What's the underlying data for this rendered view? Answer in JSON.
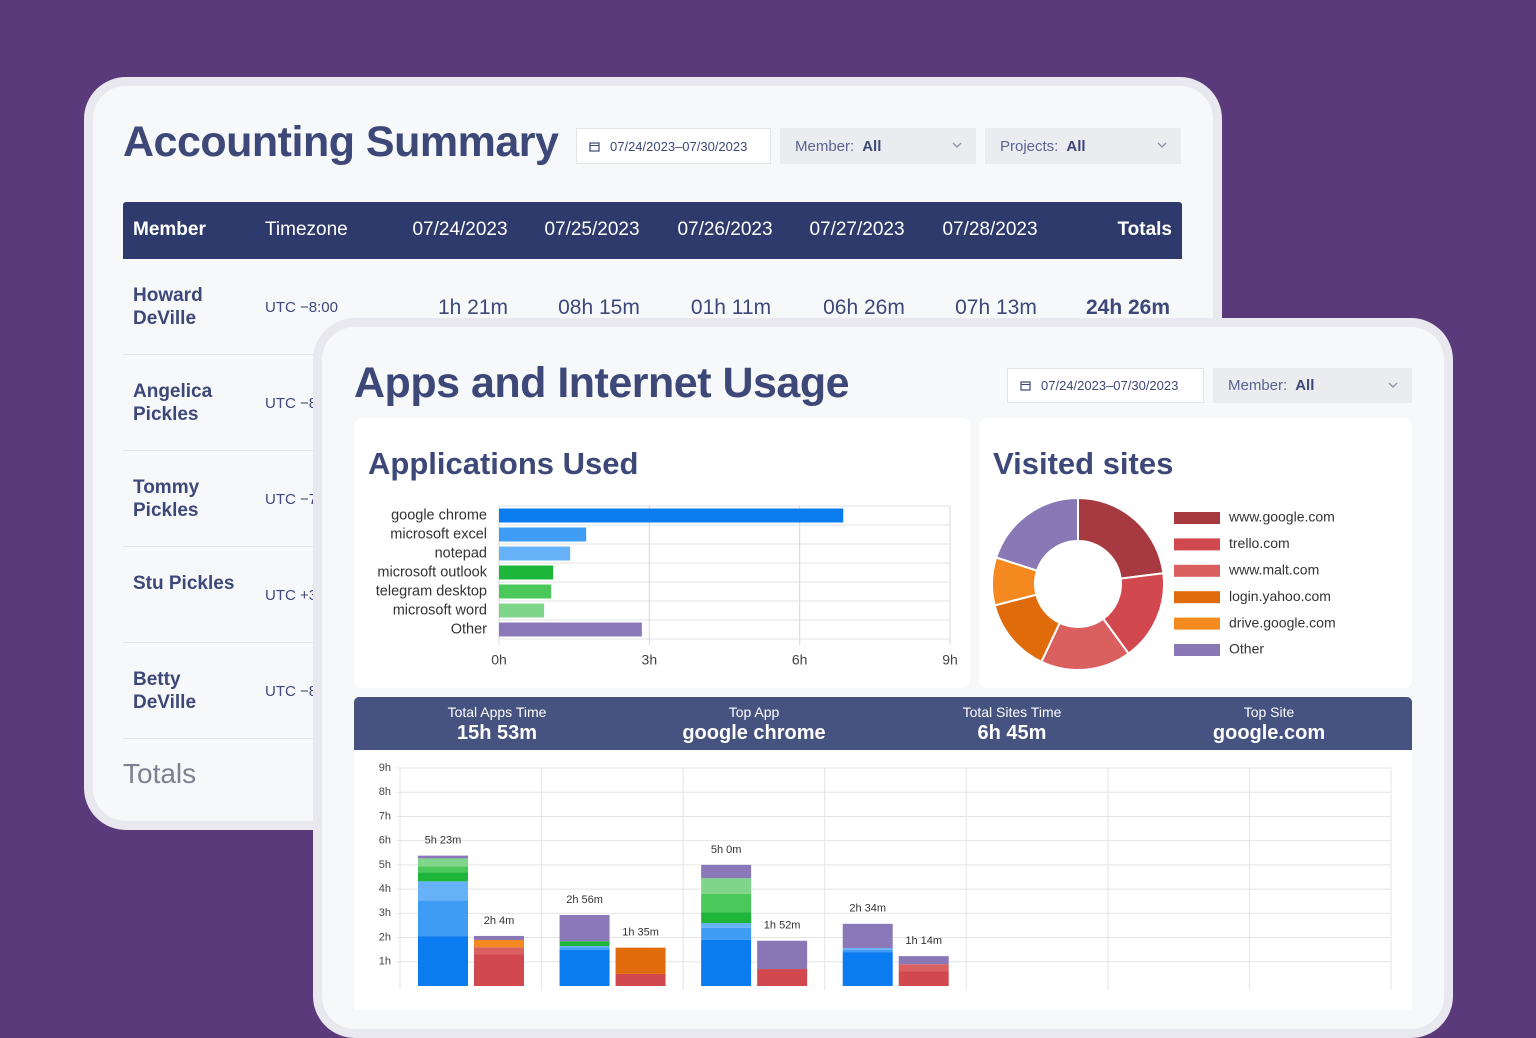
{
  "accounting": {
    "title": "Accounting Summary",
    "date_range": "07/24/2023–07/30/2023",
    "filters": [
      {
        "label": "Member:",
        "value": "All"
      },
      {
        "label": "Projects:",
        "value": "All"
      }
    ],
    "table": {
      "header": [
        "Member",
        "Timezone",
        "07/24/2023",
        "07/25/2023",
        "07/26/2023",
        "07/27/2023",
        "07/28/2023",
        "Totals"
      ],
      "rows": [
        [
          "Howard DeVille",
          "UTC −8:00",
          "1h 21m",
          "08h 15m",
          "01h 11m",
          "06h 26m",
          "07h 13m",
          "24h 26m"
        ],
        [
          "Angelica Pickles",
          "UTC −8"
        ],
        [
          "Tommy Pickles",
          "UTC −7"
        ],
        [
          "Stu Pickles",
          "UTC +3"
        ],
        [
          "Betty DeVille",
          "UTC −8"
        ]
      ]
    },
    "totals_label": "Totals"
  },
  "usage": {
    "title": "Apps and Internet Usage",
    "date_range": "07/24/2023–07/30/2023",
    "filters": [
      {
        "label": "Member:",
        "value": "All"
      }
    ],
    "stats": [
      {
        "label": "Total Apps Time",
        "value": "15h 53m"
      },
      {
        "label": "Top App",
        "value": "google chrome"
      },
      {
        "label": "Total Sites Time",
        "value": "6h 45m"
      },
      {
        "label": "Top Site",
        "value": "google.com"
      }
    ]
  },
  "chart_data": [
    {
      "type": "hbar",
      "title": "Applications Used",
      "categories": [
        "google chrome",
        "microsoft excel",
        "notepad",
        "microsoft outlook",
        "telegram desktop",
        "microsoft word",
        "Other"
      ],
      "values": [
        6.87,
        1.74,
        1.42,
        1.08,
        1.04,
        0.9,
        2.85
      ],
      "colors": [
        "#0b7bf0",
        "#3e9cf4",
        "#66b1f7",
        "#1db53a",
        "#4bc85a",
        "#7fd58a",
        "#8b78b8"
      ],
      "xlim": [
        0,
        9
      ],
      "xticks": [
        {
          "value": 0,
          "label": "0h"
        },
        {
          "value": 3,
          "label": "3h"
        },
        {
          "value": 6,
          "label": "6h"
        },
        {
          "value": 9,
          "label": "9h"
        }
      ],
      "grid": true
    },
    {
      "type": "donut",
      "title": "Visited sites",
      "categories": [
        "www.google.com",
        "trello.com",
        "www.malt.com",
        "login.yahoo.com",
        "drive.google.com",
        "Other"
      ],
      "values": [
        23,
        17,
        17,
        14,
        9,
        20
      ],
      "colors": [
        "#a63a40",
        "#d1484e",
        "#da5f5f",
        "#e06b0b",
        "#f48a1f",
        "#8978b5"
      ],
      "legend": "right"
    },
    {
      "type": "stacked_bar",
      "categories": [
        null,
        null,
        null,
        null,
        null,
        null,
        null
      ],
      "ylim": [
        0,
        9
      ],
      "yticks": [
        {
          "value": 1,
          "label": "1h"
        },
        {
          "value": 2,
          "label": "2h"
        },
        {
          "value": 3,
          "label": "3h"
        },
        {
          "value": 4,
          "label": "4h"
        },
        {
          "value": 5,
          "label": "5h"
        },
        {
          "value": 6,
          "label": "6h"
        },
        {
          "value": 7,
          "label": "7h"
        },
        {
          "value": 8,
          "label": "8h"
        },
        {
          "value": 9,
          "label": "9h"
        }
      ],
      "grid": true,
      "series": [
        {
          "stack": "apps",
          "color": "#0b7bf0",
          "values": [
            2.06,
            1.5,
            1.9,
            1.4,
            null,
            null,
            null
          ]
        },
        {
          "stack": "apps",
          "color": "#3e9cf4",
          "values": [
            1.48,
            0.1,
            0.5,
            0.1,
            null,
            null,
            null
          ]
        },
        {
          "stack": "apps",
          "color": "#66b1f7",
          "values": [
            0.78,
            0.05,
            0.2,
            0.067,
            null,
            null,
            null
          ]
        },
        {
          "stack": "apps",
          "color": "#1db53a",
          "values": [
            0.37,
            0.2,
            0.45,
            0,
            null,
            null,
            null
          ]
        },
        {
          "stack": "apps",
          "color": "#4bc85a",
          "values": [
            0.25,
            0,
            0.75,
            0,
            null,
            null,
            null
          ]
        },
        {
          "stack": "apps",
          "color": "#7fd58a",
          "values": [
            0.33,
            0,
            0.65,
            0,
            null,
            null,
            null
          ]
        },
        {
          "stack": "apps",
          "color": "#8b78b8",
          "values": [
            0.113,
            1.083,
            0.55,
            1.0,
            null,
            null,
            null
          ]
        },
        {
          "stack": "sites",
          "color": "#d1484e",
          "values": [
            1.3,
            0.5,
            0.7,
            0.6,
            null,
            null,
            null
          ]
        },
        {
          "stack": "sites",
          "color": "#da5f5f",
          "values": [
            0.3,
            0,
            0,
            0.3,
            null,
            null,
            null
          ]
        },
        {
          "stack": "sites",
          "color": "#e06b0b",
          "values": [
            0,
            1.083,
            0,
            0,
            null,
            null,
            null
          ]
        },
        {
          "stack": "sites",
          "color": "#f48a1f",
          "values": [
            0.3,
            0,
            0,
            0,
            null,
            null,
            null
          ]
        },
        {
          "stack": "sites",
          "color": "#8978b5",
          "values": [
            0.167,
            0,
            1.167,
            0.333,
            null,
            null,
            null
          ]
        }
      ],
      "stack_totals": [
        {
          "stack": "apps",
          "values": [
            5.383,
            2.933,
            5.0,
            2.567,
            null,
            null,
            null
          ],
          "value_labels": [
            "5h 23m",
            "2h 56m",
            "5h 0m",
            "2h 34m",
            null,
            null,
            null
          ]
        },
        {
          "stack": "sites",
          "values": [
            2.067,
            1.583,
            1.867,
            1.233,
            null,
            null,
            null
          ],
          "value_labels": [
            "2h 4m",
            "1h 35m",
            "1h 52m",
            "1h 14m",
            null,
            null,
            null
          ]
        }
      ]
    }
  ]
}
